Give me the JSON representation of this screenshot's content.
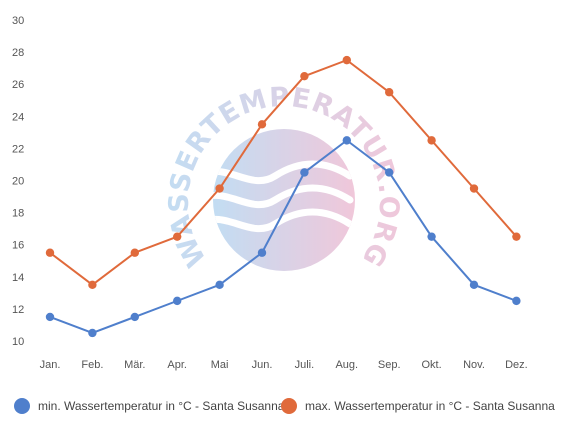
{
  "chart_data": {
    "type": "line",
    "title": "",
    "xlabel": "",
    "ylabel": "",
    "categories": [
      "Jan.",
      "Feb.",
      "Mär.",
      "Apr.",
      "Mai",
      "Jun.",
      "Juli.",
      "Aug.",
      "Sep.",
      "Okt.",
      "Nov.",
      "Dez."
    ],
    "yticks": [
      "10",
      "12",
      "14",
      "16",
      "18",
      "20",
      "22",
      "24",
      "26",
      "28",
      "30"
    ],
    "ylim": [
      10,
      30
    ],
    "grid": false,
    "legend_position": "bottom",
    "series": [
      {
        "name": "min. Wassertemperatur in °C - Santa Susanna",
        "color": "#4f7fcc",
        "values": [
          11.5,
          10.5,
          11.5,
          12.5,
          13.5,
          15.5,
          20.5,
          22.5,
          20.5,
          16.5,
          13.5,
          12.5
        ]
      },
      {
        "name": "max. Wassertemperatur in °C - Santa Susanna",
        "color": "#e06a3b",
        "values": [
          15.5,
          13.5,
          15.5,
          16.5,
          19.5,
          23.5,
          26.5,
          27.5,
          25.5,
          22.5,
          19.5,
          16.5
        ]
      }
    ]
  },
  "watermark": {
    "text": "WASSERTEMPERATUR.ORG"
  }
}
